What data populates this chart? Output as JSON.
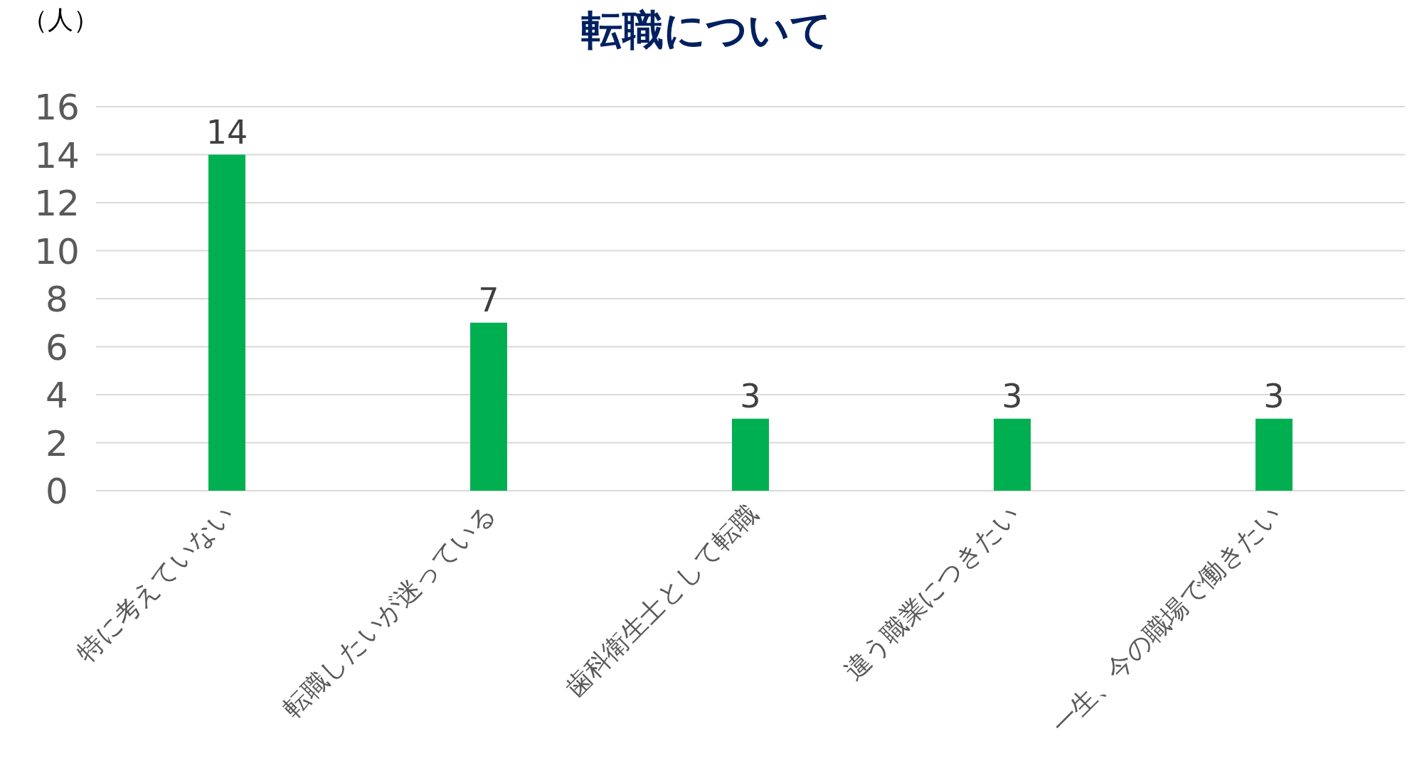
{
  "chart_data": {
    "type": "bar",
    "title": "転職について",
    "ylabel": "（人）",
    "categories": [
      "特に考えていない",
      "転職したいが迷っている",
      "歯科衛生士として転職",
      "違う職業につきたい",
      "一生、今の職場で働きたい"
    ],
    "values": [
      14,
      7,
      3,
      3,
      3
    ],
    "color": "#00b050",
    "data_labels": true,
    "grid": "y",
    "ylim": [
      0,
      16
    ],
    "yticks": [
      0,
      2,
      4,
      6,
      8,
      10,
      12,
      14,
      16
    ]
  }
}
